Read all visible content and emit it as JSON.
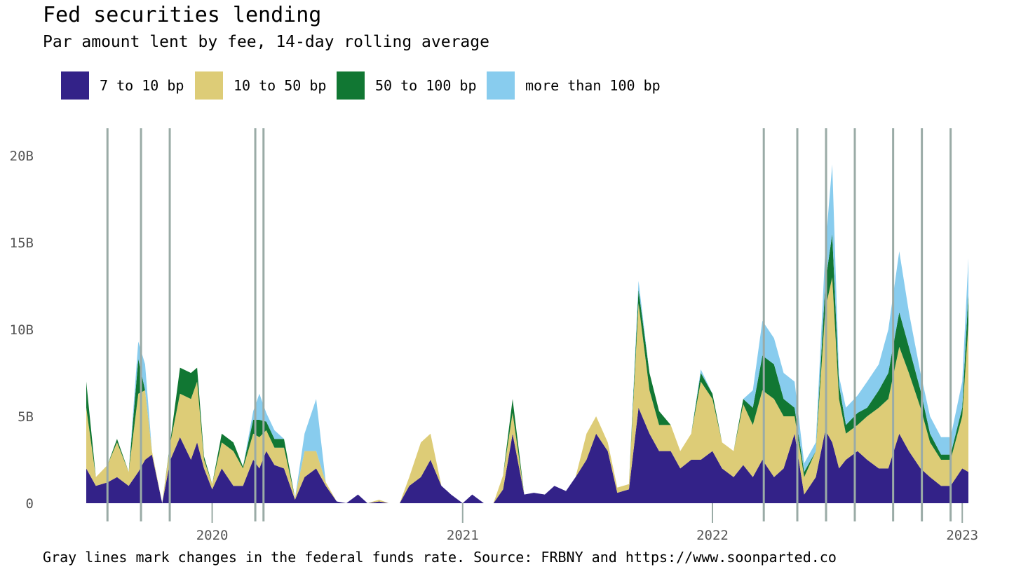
{
  "title": "Fed securities lending",
  "subtitle": "Par amount lent by fee, 14-day rolling average",
  "footer": "Gray lines mark changes in the federal funds rate. Source: FRBNY and https://www.soonparted.co",
  "legend": [
    {
      "label": "7 to 10 bp",
      "color": "#332288"
    },
    {
      "label": "10 to 50 bp",
      "color": "#DDCC77"
    },
    {
      "label": "50 to 100 bp",
      "color": "#117733"
    },
    {
      "label": "more than 100 bp",
      "color": "#88CCEE"
    }
  ],
  "chart_data": {
    "type": "area",
    "stacked": true,
    "title": "Fed securities lending",
    "subtitle": "Par amount lent by fee, 14-day rolling average",
    "y_unit": "B",
    "ylim": [
      0,
      21.5
    ],
    "xlim": [
      "2019-07-01",
      "2023-01-10"
    ],
    "y_ticks": [
      0,
      5,
      10,
      15,
      20
    ],
    "y_tick_labels": [
      "0",
      "5B",
      "10B",
      "15B",
      "20B"
    ],
    "x_ticks": [
      "2020-01-01",
      "2021-01-01",
      "2022-01-01",
      "2023-01-01"
    ],
    "x_tick_labels": [
      "2020",
      "2021",
      "2022",
      "2023"
    ],
    "grid": false,
    "legend_position": "top-left",
    "rate_change_dates": [
      "2019-08-01",
      "2019-09-19",
      "2019-10-31",
      "2020-03-04",
      "2020-03-16",
      "2022-03-17",
      "2022-05-05",
      "2022-06-16",
      "2022-07-28",
      "2022-09-22",
      "2022-11-03",
      "2022-12-15"
    ],
    "rate_line_color": "#9aaba6",
    "x": [
      "2019-07-01",
      "2019-07-15",
      "2019-08-01",
      "2019-08-15",
      "2019-09-01",
      "2019-09-15",
      "2019-09-25",
      "2019-10-05",
      "2019-10-20",
      "2019-11-01",
      "2019-11-15",
      "2019-12-01",
      "2019-12-10",
      "2019-12-20",
      "2020-01-01",
      "2020-01-15",
      "2020-02-01",
      "2020-02-15",
      "2020-03-01",
      "2020-03-10",
      "2020-03-20",
      "2020-04-01",
      "2020-04-15",
      "2020-05-01",
      "2020-05-15",
      "2020-06-01",
      "2020-06-15",
      "2020-07-01",
      "2020-07-15",
      "2020-08-01",
      "2020-08-15",
      "2020-09-01",
      "2020-09-15",
      "2020-10-01",
      "2020-10-15",
      "2020-11-01",
      "2020-11-15",
      "2020-12-01",
      "2020-12-15",
      "2021-01-01",
      "2021-01-15",
      "2021-02-01",
      "2021-02-15",
      "2021-03-01",
      "2021-03-15",
      "2021-04-01",
      "2021-04-15",
      "2021-05-01",
      "2021-05-15",
      "2021-06-01",
      "2021-06-15",
      "2021-07-01",
      "2021-07-15",
      "2021-08-01",
      "2021-08-15",
      "2021-09-01",
      "2021-09-15",
      "2021-10-01",
      "2021-10-15",
      "2021-11-01",
      "2021-11-15",
      "2021-12-01",
      "2021-12-15",
      "2022-01-01",
      "2022-01-15",
      "2022-02-01",
      "2022-02-15",
      "2022-03-01",
      "2022-03-15",
      "2022-04-01",
      "2022-04-15",
      "2022-05-01",
      "2022-05-15",
      "2022-06-01",
      "2022-06-15",
      "2022-06-25",
      "2022-07-05",
      "2022-07-15",
      "2022-08-01",
      "2022-08-15",
      "2022-09-01",
      "2022-09-15",
      "2022-10-01",
      "2022-10-15",
      "2022-11-01",
      "2022-11-15",
      "2022-12-01",
      "2022-12-15",
      "2023-01-01",
      "2023-01-10"
    ],
    "series": [
      {
        "name": "7 to 10 bp",
        "color": "#332288",
        "values": [
          2.0,
          1.0,
          1.2,
          1.5,
          1.0,
          1.8,
          2.5,
          2.8,
          0.0,
          2.5,
          3.8,
          2.5,
          3.5,
          2.0,
          0.8,
          2.0,
          1.0,
          1.0,
          2.5,
          2.0,
          3.0,
          2.2,
          2.0,
          0.2,
          1.5,
          2.0,
          1.0,
          0.1,
          0.0,
          0.5,
          0.0,
          0.1,
          0.0,
          0.0,
          1.0,
          1.5,
          2.5,
          1.0,
          0.5,
          0.0,
          0.5,
          0.0,
          0.0,
          0.8,
          4.0,
          0.5,
          0.6,
          0.5,
          1.0,
          0.7,
          1.5,
          2.5,
          4.0,
          3.0,
          0.6,
          0.8,
          5.5,
          4.0,
          3.0,
          3.0,
          2.0,
          2.5,
          2.5,
          3.0,
          2.0,
          1.5,
          2.2,
          1.5,
          2.5,
          1.5,
          2.0,
          4.0,
          0.5,
          1.5,
          4.2,
          3.5,
          2.0,
          2.5,
          3.0,
          2.5,
          2.0,
          2.0,
          4.0,
          3.0,
          2.0,
          1.5,
          1.0,
          1.0,
          2.0,
          1.8
        ]
      },
      {
        "name": "10 to 50 bp",
        "color": "#DDCC77",
        "values": [
          3.5,
          0.5,
          1.0,
          2.0,
          0.8,
          4.5,
          4.0,
          0.2,
          0.0,
          1.0,
          2.5,
          3.5,
          3.5,
          0.5,
          0.3,
          1.5,
          2.0,
          1.0,
          1.5,
          1.8,
          1.2,
          1.0,
          1.2,
          0.1,
          1.5,
          1.0,
          0.2,
          0.0,
          0.0,
          0.0,
          0.0,
          0.1,
          0.0,
          0.0,
          0.5,
          2.0,
          1.5,
          0.0,
          0.0,
          0.0,
          0.0,
          0.0,
          0.0,
          0.8,
          1.2,
          0.0,
          0.0,
          0.0,
          0.0,
          0.0,
          0.0,
          1.5,
          1.0,
          0.5,
          0.3,
          0.3,
          6.0,
          2.5,
          1.5,
          1.5,
          1.0,
          1.5,
          4.5,
          3.0,
          1.5,
          1.5,
          3.5,
          3.0,
          4.0,
          4.5,
          3.0,
          1.0,
          1.0,
          1.5,
          7.0,
          9.5,
          4.0,
          1.5,
          1.5,
          2.5,
          3.5,
          4.0,
          5.0,
          4.5,
          3.5,
          2.0,
          1.5,
          1.5,
          3.0,
          8.5
        ]
      },
      {
        "name": "50 to 100 bp",
        "color": "#117733",
        "values": [
          1.5,
          0.0,
          0.0,
          0.2,
          0.0,
          2.0,
          0.0,
          0.0,
          0.0,
          0.1,
          1.5,
          1.5,
          0.8,
          0.2,
          0.0,
          0.5,
          0.5,
          0.1,
          0.8,
          1.0,
          0.5,
          0.5,
          0.5,
          0.0,
          0.0,
          0.0,
          0.0,
          0.0,
          0.0,
          0.0,
          0.0,
          0.0,
          0.0,
          0.0,
          0.0,
          0.0,
          0.0,
          0.0,
          0.0,
          0.0,
          0.0,
          0.0,
          0.0,
          0.0,
          0.8,
          0.0,
          0.0,
          0.0,
          0.0,
          0.0,
          0.0,
          0.0,
          0.0,
          0.0,
          0.0,
          0.0,
          0.8,
          1.0,
          0.8,
          0.0,
          0.0,
          0.0,
          0.5,
          0.3,
          0.0,
          0.0,
          0.3,
          1.0,
          2.0,
          2.0,
          1.0,
          0.5,
          0.3,
          0.0,
          1.5,
          2.5,
          0.8,
          0.5,
          0.7,
          0.5,
          1.0,
          1.5,
          2.0,
          1.5,
          1.0,
          0.5,
          0.3,
          0.3,
          0.5,
          1.8
        ]
      },
      {
        "name": "more than 100 bp",
        "color": "#88CCEE",
        "values": [
          0.0,
          0.0,
          0.0,
          0.0,
          0.0,
          1.0,
          1.5,
          0.0,
          0.0,
          0.0,
          0.0,
          0.0,
          0.0,
          0.0,
          0.0,
          0.0,
          0.0,
          0.0,
          0.5,
          1.5,
          0.5,
          0.5,
          0.0,
          0.0,
          1.0,
          3.0,
          0.0,
          0.0,
          0.0,
          0.0,
          0.0,
          0.0,
          0.0,
          0.0,
          0.0,
          0.0,
          0.0,
          0.0,
          0.0,
          0.0,
          0.0,
          0.0,
          0.0,
          0.0,
          0.0,
          0.0,
          0.0,
          0.0,
          0.0,
          0.0,
          0.0,
          0.0,
          0.0,
          0.0,
          0.0,
          0.0,
          0.5,
          0.0,
          0.0,
          0.0,
          0.0,
          0.0,
          0.2,
          0.0,
          0.0,
          0.0,
          0.0,
          1.0,
          2.0,
          1.5,
          1.5,
          1.5,
          0.5,
          0.5,
          2.0,
          4.0,
          0.5,
          1.0,
          1.0,
          1.5,
          1.5,
          2.5,
          3.5,
          2.0,
          1.0,
          1.0,
          1.0,
          1.0,
          1.5,
          2.0
        ]
      }
    ]
  }
}
